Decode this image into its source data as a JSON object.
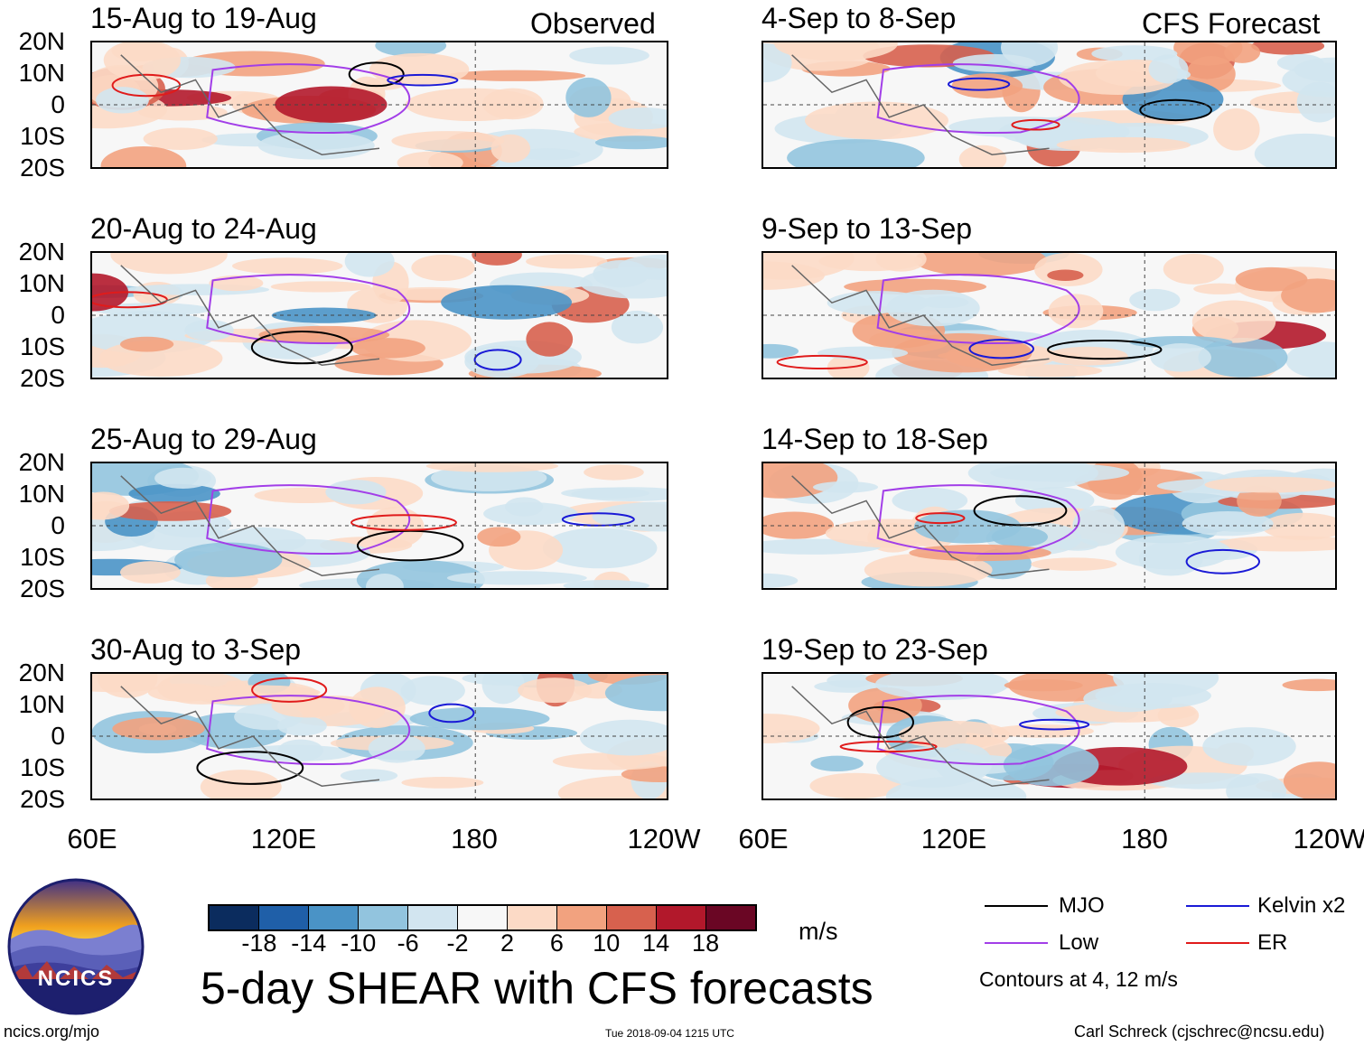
{
  "column_labels": {
    "observed": "Observed",
    "forecast": "CFS Forecast"
  },
  "panels": [
    {
      "title": "15-Aug to 19-Aug",
      "column": "observed"
    },
    {
      "title": "20-Aug to 24-Aug",
      "column": "observed"
    },
    {
      "title": "25-Aug to 29-Aug",
      "column": "observed"
    },
    {
      "title": "30-Aug to 3-Sep",
      "column": "observed"
    },
    {
      "title": "4-Sep to 8-Sep",
      "column": "forecast"
    },
    {
      "title": "9-Sep to 13-Sep",
      "column": "forecast"
    },
    {
      "title": "14-Sep to 18-Sep",
      "column": "forecast"
    },
    {
      "title": "19-Sep to 23-Sep",
      "column": "forecast"
    }
  ],
  "lat_labels": [
    "20N",
    "10N",
    "0",
    "10S",
    "20S"
  ],
  "lon_labels": [
    "60E",
    "120E",
    "180",
    "120W"
  ],
  "colorbar": {
    "unit": "m/s",
    "ticks": [
      "-18",
      "-14",
      "-10",
      "-6",
      "-2",
      "2",
      "6",
      "10",
      "14",
      "18"
    ],
    "colors": [
      "#0b2c5e",
      "#1f5fa8",
      "#4a93c6",
      "#92c4de",
      "#d2e5f0",
      "#f7f7f7",
      "#fcdac6",
      "#f2a27f",
      "#d7614e",
      "#b2182b",
      "#6a0624"
    ]
  },
  "legend": {
    "items": [
      {
        "label": "MJO",
        "color": "#000000"
      },
      {
        "label": "Kelvin x2",
        "color": "#1a1ad6"
      },
      {
        "label": "Low",
        "color": "#a23ee8"
      },
      {
        "label": "ER",
        "color": "#e01b1b"
      }
    ],
    "note": "Contours at 4, 12 m/s"
  },
  "main_title": "5-day SHEAR with CFS forecasts",
  "logo_text": "NCICS",
  "footer": {
    "url": "ncics.org/mjo",
    "timestamp": "Tue 2018-09-04 1215 UTC",
    "credit": "Carl Schreck (cjschrec@ncsu.edu)"
  }
}
